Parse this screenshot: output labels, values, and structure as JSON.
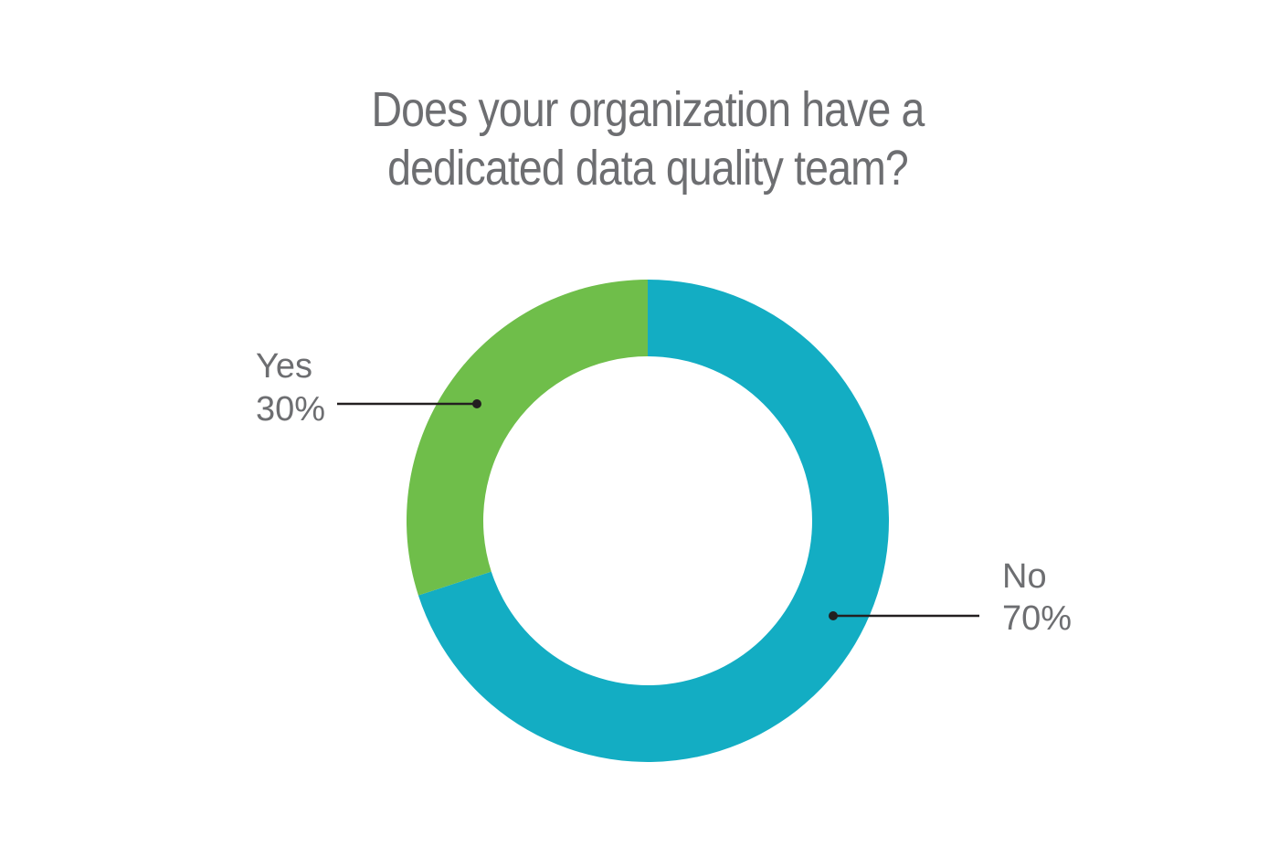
{
  "chart_data": {
    "type": "pie",
    "style": "donut",
    "title_lines": [
      "Does your organization have a",
      "dedicated data quality team?"
    ],
    "slices": [
      {
        "label": "No",
        "value": 70,
        "value_label": "70%",
        "color": "#13adc3"
      },
      {
        "label": "Yes",
        "value": 30,
        "value_label": "30%",
        "color": "#6fbe4a"
      }
    ],
    "legend": "none",
    "callout_color": "#231f20"
  }
}
